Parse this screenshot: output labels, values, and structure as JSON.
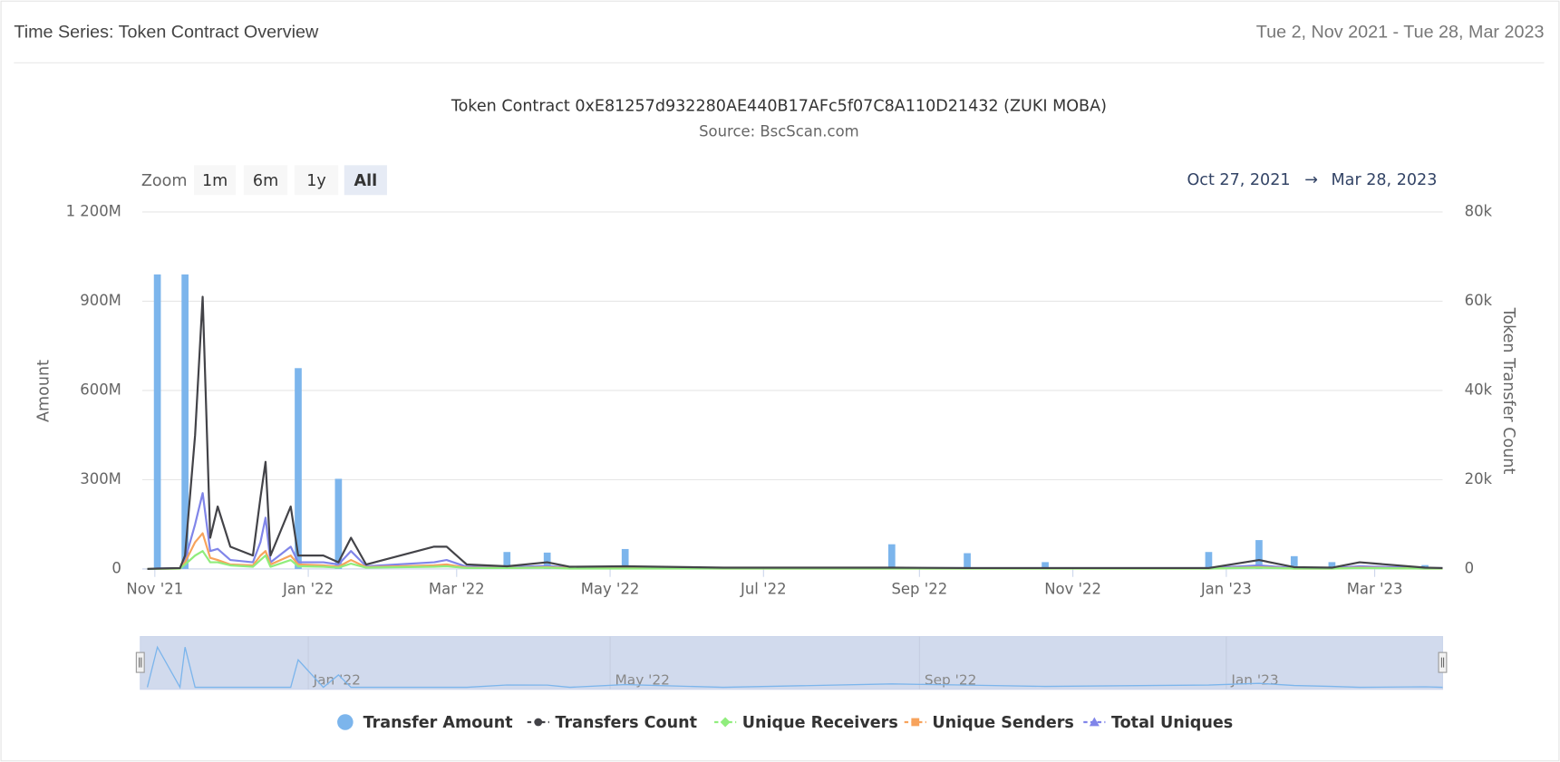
{
  "header": {
    "title": "Time Series: Token Contract Overview",
    "date_range": "Tue 2, Nov 2021 - Tue 28, Mar 2023"
  },
  "controls": {
    "zoom_label": "Zoom",
    "zoom_buttons": [
      "1m",
      "6m",
      "1y",
      "All"
    ],
    "selected_button": 3,
    "range_from": "Oct 27, 2021",
    "range_arrow": "→",
    "range_to": "Mar 28, 2023"
  },
  "chart_data": {
    "type": "combo",
    "title": "Token Contract 0xE81257d932280AE440B17AFc5f07C8A110D21432 (ZUKI MOBA)",
    "subtitle": "Source: BscScan.com",
    "y_label": "Amount",
    "y2_label": "Token Transfer Count",
    "grid": true,
    "legend": "bottom",
    "xlim": [
      "2021-10-27",
      "2023-03-28"
    ],
    "xticks": [
      {
        "value": "2021-11-01",
        "label": "Nov '21"
      },
      {
        "value": "2022-01-01",
        "label": "Jan '22"
      },
      {
        "value": "2022-03-01",
        "label": "Mar '22"
      },
      {
        "value": "2022-05-01",
        "label": "May '22"
      },
      {
        "value": "2022-07-01",
        "label": "Jul '22"
      },
      {
        "value": "2022-09-01",
        "label": "Sep '22"
      },
      {
        "value": "2022-11-01",
        "label": "Nov '22"
      },
      {
        "value": "2023-01-01",
        "label": "Jan '23"
      },
      {
        "value": "2023-03-01",
        "label": "Mar '23"
      }
    ],
    "ylim": [
      0,
      1200000000
    ],
    "yticks": [
      0,
      {
        "value": 300000000,
        "label": "300M"
      },
      {
        "value": 600000000,
        "label": "600M"
      },
      {
        "value": 900000000,
        "label": "900M"
      },
      {
        "value": 1200000000,
        "label": "1 200M"
      }
    ],
    "y2lim": [
      0,
      80000
    ],
    "y2ticks": [
      0,
      {
        "value": 20000,
        "label": "20k"
      },
      {
        "value": 40000,
        "label": "40k"
      },
      {
        "value": 60000,
        "label": "60k"
      },
      {
        "value": 80000,
        "label": "80k"
      }
    ],
    "navigator_xticks": [
      {
        "value": "2022-01-01",
        "label": "Jan '22"
      },
      {
        "value": "2022-05-01",
        "label": "May '22"
      },
      {
        "value": "2022-09-01",
        "label": "Sep '22"
      },
      {
        "value": "2023-01-01",
        "label": "Jan '23"
      }
    ],
    "x": [
      "2021-10-29",
      "2021-11-02",
      "2021-11-11",
      "2021-11-13",
      "2021-11-17",
      "2021-11-20",
      "2021-11-23",
      "2021-11-26",
      "2021-12-01",
      "2021-12-10",
      "2021-12-13",
      "2021-12-15",
      "2021-12-17",
      "2021-12-25",
      "2021-12-28",
      "2022-01-07",
      "2022-01-13",
      "2022-01-18",
      "2022-01-24",
      "2022-02-20",
      "2022-02-25",
      "2022-03-05",
      "2022-03-21",
      "2022-04-06",
      "2022-04-15",
      "2022-05-07",
      "2022-06-15",
      "2022-08-21",
      "2022-09-20",
      "2022-10-21",
      "2022-12-25",
      "2023-01-14",
      "2023-01-28",
      "2023-02-12",
      "2023-02-23",
      "2023-03-21",
      "2023-03-28"
    ],
    "series": [
      {
        "name": "Transfer Amount",
        "type": "column",
        "marker": "circle",
        "color": "#7cb5ec",
        "axis": "y",
        "values": [
          0,
          990000000,
          0,
          990000000,
          0,
          0,
          0,
          0,
          0,
          0,
          0,
          0,
          0,
          0,
          675000000,
          0,
          303000000,
          0,
          0,
          0,
          0,
          0,
          57000000,
          55000000,
          0,
          67000000,
          0,
          83000000,
          53000000,
          23000000,
          57000000,
          97000000,
          43000000,
          23000000,
          0,
          13000000,
          0
        ]
      },
      {
        "name": "Transfers Count",
        "type": "line",
        "marker": "circle",
        "color": "#434348",
        "axis": "y2",
        "values": [
          0,
          100,
          200,
          3000,
          30000,
          61000,
          7000,
          14000,
          5000,
          3000,
          16000,
          24000,
          3000,
          14000,
          3000,
          3000,
          1500,
          7000,
          1000,
          5000,
          5000,
          1000,
          600,
          1500,
          500,
          600,
          300,
          300,
          200,
          200,
          200,
          2000,
          400,
          300,
          1500,
          300,
          200
        ]
      },
      {
        "name": "Unique Receivers",
        "type": "line",
        "marker": "diamond",
        "color": "#90ed7d",
        "axis": "y2",
        "values": [
          0,
          50,
          100,
          1000,
          3000,
          4000,
          1500,
          1500,
          800,
          500,
          2000,
          3000,
          500,
          2000,
          600,
          500,
          300,
          1200,
          300,
          500,
          600,
          200,
          200,
          300,
          100,
          100,
          100,
          100,
          100,
          100,
          100,
          300,
          100,
          100,
          200,
          100,
          100
        ]
      },
      {
        "name": "Unique Senders",
        "type": "line",
        "marker": "square",
        "color": "#f7a35c",
        "axis": "y2",
        "values": [
          0,
          50,
          100,
          1500,
          6000,
          8000,
          2500,
          2000,
          1000,
          800,
          3000,
          4000,
          1000,
          3000,
          1000,
          800,
          500,
          2000,
          400,
          800,
          1000,
          300,
          200,
          400,
          200,
          200,
          100,
          100,
          100,
          100,
          100,
          400,
          100,
          100,
          300,
          100,
          100
        ]
      },
      {
        "name": "Total Uniques",
        "type": "line",
        "marker": "triangle",
        "color": "#8085e9",
        "axis": "y2",
        "values": [
          0,
          100,
          200,
          2000,
          10000,
          17000,
          4000,
          4500,
          2000,
          1500,
          6000,
          11500,
          1500,
          5000,
          1500,
          1500,
          1000,
          4000,
          600,
          1500,
          2000,
          500,
          400,
          700,
          300,
          300,
          200,
          200,
          200,
          200,
          200,
          800,
          200,
          200,
          600,
          200,
          200
        ]
      }
    ]
  }
}
